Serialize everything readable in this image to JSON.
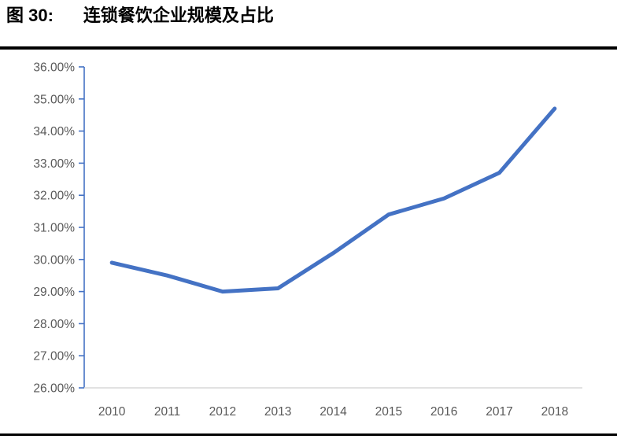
{
  "figure": {
    "label": "图 30:",
    "title": "连锁餐饮企业规模及占比"
  },
  "colors": {
    "line": "#4472C4",
    "y_axis": "#4472C4",
    "x_axis": "#D9D9D9",
    "tick_label": "#595959",
    "rule": "#000000"
  },
  "chart_data": {
    "type": "line",
    "title": "连锁餐饮企业规模及占比",
    "categories": [
      "2010",
      "2011",
      "2012",
      "2013",
      "2014",
      "2015",
      "2016",
      "2017",
      "2018"
    ],
    "values": [
      29.9,
      29.5,
      29.0,
      29.1,
      30.2,
      31.4,
      31.9,
      32.7,
      34.7
    ],
    "unit": "%",
    "xlabel": "",
    "ylabel": "",
    "ylim": [
      26,
      36
    ],
    "ytick_step": 1,
    "ytick_labels": [
      "36.00%",
      "35.00%",
      "34.00%",
      "33.00%",
      "32.00%",
      "31.00%",
      "30.00%",
      "29.00%",
      "28.00%",
      "27.00%",
      "26.00%"
    ],
    "grid": false,
    "legend": false
  }
}
